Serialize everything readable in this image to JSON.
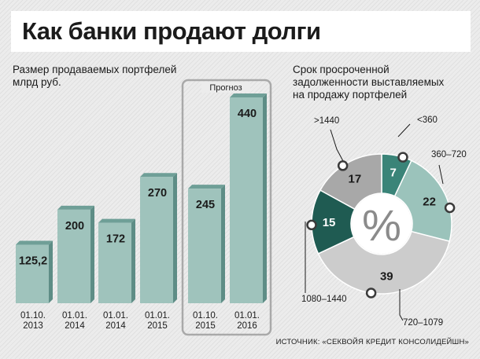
{
  "title": "Как банки продают долги",
  "colors": {
    "bar_front": "#9fc3bc",
    "bar_top": "#6f9f97",
    "bar_side": "#5e8d86",
    "forecast_frame": "#a9a9a9",
    "donut_dark": "#1f5b52",
    "donut_medium": "#3a8478",
    "donut_light": "#9bc3bb",
    "donut_grey": "#a8a8a8",
    "donut_light_grey": "#cccccc"
  },
  "left_chart": {
    "title_lines": [
      "Размер продаваемых портфелей",
      "млрд руб."
    ],
    "forecast_label": "Прогноз"
  },
  "right_chart": {
    "title_lines": [
      "Срок просроченной",
      "задолженности выставляемых",
      "на продажу портфелей"
    ],
    "center_label": "%"
  },
  "source": "ИСТОЧНИК: «СЕКВОЙЯ КРЕДИТ КОНСОЛИДЕЙШН»",
  "chart_data": [
    {
      "type": "bar",
      "title": "Размер продаваемых портфелей",
      "ylabel": "млрд руб.",
      "categories": [
        "01.10.\n2013",
        "01.01.\n2014",
        "01.01.\n2014",
        "01.01.\n2015",
        "01.10.\n2015",
        "01.01.\n2016"
      ],
      "values": [
        125.2,
        200,
        172,
        270,
        245,
        440
      ],
      "value_labels": [
        "125,2",
        "200",
        "172",
        "270",
        "245",
        "440"
      ],
      "forecast": [
        false,
        false,
        false,
        false,
        true,
        true
      ],
      "ylim": [
        0,
        440
      ],
      "grid": false
    },
    {
      "type": "pie",
      "title": "Срок просроченной задолженности выставляемых на продажу портфелей",
      "center_label": "%",
      "categories": [
        "<360",
        "360–720",
        "720–1079",
        "1080–1440",
        ">1440"
      ],
      "values": [
        7,
        22,
        39,
        15,
        17
      ],
      "colors": [
        "#3a8478",
        "#9bc3bb",
        "#cccccc",
        "#1f5b52",
        "#a8a8a8"
      ]
    }
  ]
}
